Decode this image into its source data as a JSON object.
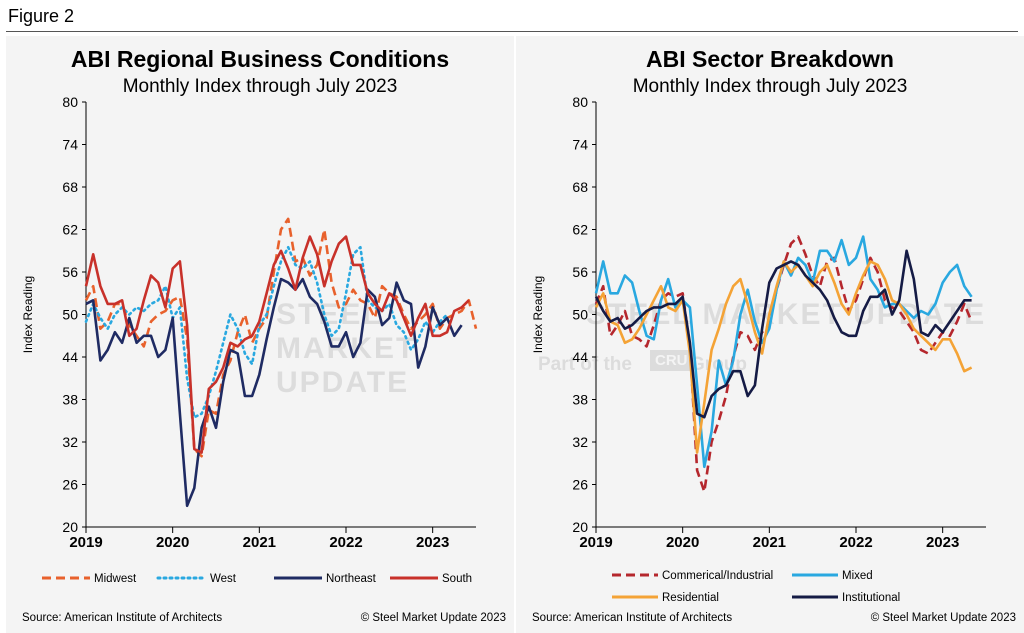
{
  "figure_label": "Figure 2",
  "watermark": {
    "brand": "STEEL MARKET UPDATE",
    "tagline": "Part of the",
    "group_badge": "CRU",
    "group": "Group"
  },
  "colors": {
    "midwest": "#e8612c",
    "west": "#29a8e0",
    "northeast": "#1f2b63",
    "south": "#c8312a",
    "commercial": "#b5272d",
    "mixed": "#29a8e0",
    "residential": "#f4a336",
    "institutional": "#151b45"
  },
  "chart_data": [
    {
      "type": "line",
      "title": "ABI Regional Business Conditions",
      "subtitle": "Monthly Index through July 2023",
      "ylabel": "Index Reading",
      "ylim": [
        20,
        80
      ],
      "yticks": [
        20,
        26,
        32,
        38,
        44,
        50,
        56,
        62,
        68,
        74,
        80
      ],
      "xtick_labels": [
        "2019",
        "2020",
        "2021",
        "2022",
        "2023"
      ],
      "x_start": "2019-01",
      "grid": false,
      "legend_position": "bottom",
      "source": "Source: American Institute of Architects",
      "copyright": "© Steel Market Update 2023",
      "series": [
        {
          "name": "Midwest",
          "style": "dashed",
          "color": "#e8612c",
          "values": [
            52.0,
            54.0,
            48.0,
            49.0,
            51.5,
            51.5,
            48.5,
            47.0,
            45.5,
            49.0,
            50.0,
            50.5,
            52.0,
            52.5,
            46.5,
            31.0,
            30.0,
            36.5,
            36.0,
            41.5,
            43.5,
            47.5,
            50.0,
            46.0,
            48.0,
            49.5,
            56.0,
            62.0,
            63.5,
            57.5,
            58.0,
            55.5,
            57.0,
            62.0,
            54.5,
            51.0,
            51.5,
            53.5,
            52.0,
            51.5,
            49.5,
            54.0,
            53.0,
            52.5,
            50.0,
            48.0,
            49.0,
            50.0,
            51.5,
            48.0,
            49.5,
            50.0,
            50.5,
            52.0,
            48.0
          ]
        },
        {
          "name": "West",
          "style": "dotted",
          "color": "#29a8e0",
          "values": [
            49.0,
            51.5,
            49.5,
            48.0,
            50.0,
            51.0,
            50.0,
            51.0,
            50.5,
            51.5,
            52.0,
            54.0,
            49.5,
            51.0,
            41.0,
            35.5,
            36.0,
            38.5,
            42.0,
            46.0,
            50.0,
            48.0,
            44.5,
            43.0,
            48.5,
            50.0,
            54.0,
            57.5,
            59.5,
            57.0,
            56.5,
            57.5,
            54.5,
            50.0,
            47.0,
            48.0,
            53.0,
            58.5,
            59.5,
            52.0,
            51.0,
            50.5,
            51.5,
            48.5,
            47.5,
            45.0,
            46.5,
            49.0,
            47.5,
            49.0,
            50.0
          ]
        },
        {
          "name": "Northeast",
          "style": "solid",
          "color": "#1f2b63",
          "values": [
            51.5,
            52.0,
            43.5,
            45.0,
            47.5,
            46.0,
            49.5,
            46.0,
            47.0,
            47.0,
            44.0,
            45.0,
            49.5,
            36.0,
            23.0,
            25.5,
            34.0,
            37.0,
            34.0,
            40.5,
            45.0,
            44.5,
            38.5,
            38.5,
            41.5,
            46.5,
            51.0,
            55.0,
            54.5,
            53.5,
            55.0,
            52.5,
            51.5,
            49.0,
            45.5,
            45.5,
            47.5,
            44.0,
            46.0,
            53.5,
            52.5,
            48.5,
            49.5,
            54.5,
            52.0,
            51.5,
            42.5,
            45.5,
            51.0,
            48.5,
            49.5,
            47.0,
            48.5
          ]
        },
        {
          "name": "South",
          "style": "solid",
          "color": "#c8312a",
          "values": [
            54.0,
            58.5,
            54.0,
            51.5,
            51.5,
            52.0,
            47.0,
            48.0,
            52.0,
            55.5,
            54.5,
            51.0,
            56.5,
            57.5,
            48.5,
            31.0,
            30.5,
            39.5,
            40.5,
            42.5,
            46.0,
            45.5,
            46.5,
            47.0,
            49.0,
            53.0,
            57.0,
            59.0,
            56.5,
            53.5,
            58.0,
            61.0,
            58.5,
            54.0,
            57.5,
            60.0,
            61.0,
            57.0,
            57.0,
            53.0,
            51.5,
            50.5,
            53.0,
            52.0,
            49.5,
            47.0,
            49.5,
            51.5,
            47.0,
            47.0,
            47.5,
            50.5,
            51.0,
            52.0
          ]
        }
      ]
    },
    {
      "type": "line",
      "title": "ABI Sector Breakdown",
      "subtitle": "Monthly Index through July 2023",
      "ylabel": "Index Reading",
      "ylim": [
        20,
        80
      ],
      "yticks": [
        20,
        26,
        32,
        38,
        44,
        50,
        56,
        62,
        68,
        74,
        80
      ],
      "xtick_labels": [
        "2019",
        "2020",
        "2021",
        "2022",
        "2023"
      ],
      "x_start": "2019-01",
      "grid": false,
      "legend_position": "bottom",
      "source": "Source: American Institute of Architects",
      "copyright": "© Steel Market Update 2023",
      "series": [
        {
          "name": "Commerical/Industrial",
          "style": "dashed",
          "color": "#b5272d",
          "values": [
            51.5,
            54.0,
            47.0,
            48.5,
            50.5,
            47.0,
            46.5,
            45.5,
            48.5,
            52.0,
            53.0,
            52.5,
            53.0,
            45.5,
            28.0,
            25.0,
            32.0,
            35.0,
            38.5,
            44.0,
            47.5,
            47.0,
            45.0,
            47.5,
            48.5,
            53.5,
            57.0,
            60.0,
            61.0,
            58.5,
            55.5,
            54.0,
            57.5,
            58.0,
            54.0,
            50.5,
            52.0,
            55.0,
            58.0,
            56.0,
            52.0,
            51.0,
            50.5,
            49.0,
            47.5,
            45.0,
            44.5,
            46.0,
            47.5,
            47.0,
            49.0,
            51.5,
            49.0
          ]
        },
        {
          "name": "Mixed",
          "style": "solid",
          "color": "#29a8e0",
          "values": [
            53.0,
            57.5,
            53.0,
            53.0,
            55.5,
            54.5,
            50.5,
            47.0,
            46.5,
            52.0,
            55.0,
            51.0,
            52.0,
            51.0,
            40.0,
            28.5,
            33.5,
            43.5,
            40.0,
            43.5,
            50.0,
            53.5,
            49.0,
            46.0,
            48.0,
            53.5,
            57.5,
            55.5,
            58.0,
            57.0,
            54.5,
            59.0,
            59.0,
            57.5,
            60.5,
            57.0,
            58.0,
            61.0,
            55.0,
            53.5,
            51.0,
            51.5,
            51.5,
            50.5,
            49.5,
            50.5,
            50.0,
            51.5,
            54.5,
            56.0,
            57.0,
            54.0,
            52.5
          ]
        },
        {
          "name": "Residential",
          "style": "solid",
          "color": "#f4a336",
          "values": [
            51.0,
            53.0,
            49.0,
            48.5,
            46.0,
            46.5,
            48.0,
            50.0,
            52.0,
            54.0,
            51.0,
            50.5,
            52.0,
            44.5,
            30.5,
            37.5,
            45.0,
            48.0,
            51.5,
            54.0,
            55.0,
            51.5,
            47.5,
            44.5,
            50.0,
            54.0,
            57.5,
            56.0,
            57.0,
            55.5,
            54.0,
            56.0,
            57.0,
            54.5,
            51.5,
            50.0,
            53.0,
            55.5,
            57.5,
            57.0,
            55.0,
            52.0,
            51.5,
            50.0,
            48.0,
            47.0,
            46.0,
            45.0,
            46.5,
            46.5,
            44.5,
            42.0,
            42.5
          ]
        },
        {
          "name": "Institutional",
          "style": "solid",
          "color": "#151b45",
          "values": [
            52.5,
            50.5,
            49.0,
            49.5,
            48.0,
            48.5,
            49.5,
            50.5,
            51.0,
            51.0,
            51.5,
            51.5,
            52.5,
            46.0,
            36.0,
            35.5,
            38.5,
            39.5,
            40.0,
            42.0,
            42.0,
            38.5,
            40.0,
            48.0,
            54.5,
            56.5,
            57.0,
            57.5,
            57.0,
            55.5,
            54.5,
            53.5,
            52.0,
            49.5,
            47.5,
            47.0,
            47.0,
            50.5,
            52.5,
            52.5,
            53.5,
            50.0,
            52.0,
            59.0,
            55.0,
            47.5,
            47.0,
            48.5,
            47.5,
            49.0,
            50.5,
            52.0,
            52.0
          ]
        }
      ]
    }
  ]
}
